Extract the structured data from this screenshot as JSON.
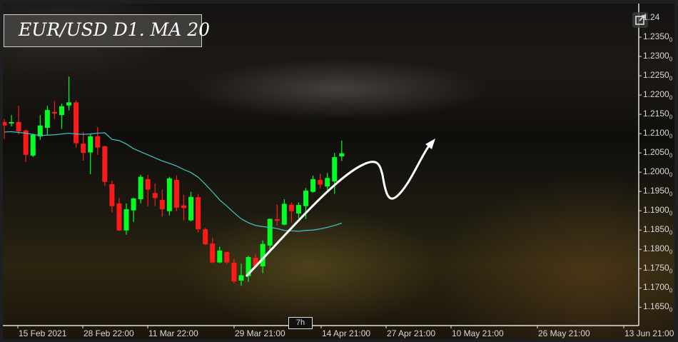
{
  "title": "EUR/USD D1. MA 20",
  "colors": {
    "bull": "#00ff22",
    "bear": "#ff1a1a",
    "ma": "#3fc7c7",
    "arrow": "#ffffff",
    "axis": "#e0e0e0"
  },
  "crosshair_label": "7h",
  "icons": {
    "expand": "external-link-icon"
  },
  "chart_data": {
    "type": "candlestick",
    "title": "EUR/USD D1. MA 20",
    "ylim": [
      1.162,
      1.243
    ],
    "y_ticks": [
      {
        "main": "1.24",
        "sub": ""
      },
      {
        "main": "1.2350",
        "sub": "0"
      },
      {
        "main": "1.2300",
        "sub": "0"
      },
      {
        "main": "1.2250",
        "sub": "0"
      },
      {
        "main": "1.2200",
        "sub": "0"
      },
      {
        "main": "1.2150",
        "sub": "0"
      },
      {
        "main": "1.2100",
        "sub": "0"
      },
      {
        "main": "1.2050",
        "sub": "0"
      },
      {
        "main": "1.2000",
        "sub": "0"
      },
      {
        "main": "1.1950",
        "sub": "0"
      },
      {
        "main": "1.1900",
        "sub": "0"
      },
      {
        "main": "1.1850",
        "sub": "0"
      },
      {
        "main": "1.1800",
        "sub": "0"
      },
      {
        "main": "1.1750",
        "sub": "0"
      },
      {
        "main": "1.1700",
        "sub": "0"
      },
      {
        "main": "1.1650",
        "sub": "0"
      }
    ],
    "y_tick_values": [
      1.24,
      1.235,
      1.23,
      1.225,
      1.22,
      1.215,
      1.21,
      1.205,
      1.2,
      1.195,
      1.19,
      1.185,
      1.18,
      1.175,
      1.17,
      1.165
    ],
    "x_ticks": [
      "15 Feb 2021",
      "28 Feb 22:00",
      "11 Mar 22:00",
      "29 Mar 21:00",
      "14 Apr 21:00",
      "27 Apr 21:00",
      "10 May 21:00",
      "26 May 21:00",
      "13 Jun 21:00"
    ],
    "candles": [
      [
        1.213,
        1.2138,
        1.2086,
        1.2121
      ],
      [
        1.2127,
        1.2148,
        1.2119,
        1.213
      ],
      [
        1.213,
        1.2172,
        1.2098,
        1.2106
      ],
      [
        1.2108,
        1.2111,
        1.2026,
        1.2045
      ],
      [
        1.2043,
        1.21,
        1.2039,
        1.2097
      ],
      [
        1.2093,
        1.2148,
        1.2084,
        1.2121
      ],
      [
        1.2115,
        1.2172,
        1.2097,
        1.2161
      ],
      [
        1.2156,
        1.2184,
        1.2138,
        1.2152
      ],
      [
        1.2148,
        1.2178,
        1.2112,
        1.2171
      ],
      [
        1.2173,
        1.2248,
        1.216,
        1.2181
      ],
      [
        1.2181,
        1.2186,
        1.2064,
        1.2075
      ],
      [
        1.2074,
        1.2104,
        1.203,
        1.205
      ],
      [
        1.2051,
        1.2098,
        1.1995,
        1.2093
      ],
      [
        1.2093,
        1.2117,
        1.2045,
        1.2064
      ],
      [
        1.2067,
        1.2069,
        1.1964,
        1.1975
      ],
      [
        1.1969,
        1.1978,
        1.1896,
        1.1912
      ],
      [
        1.1919,
        1.1934,
        1.1847,
        1.1849
      ],
      [
        1.1849,
        1.1919,
        1.1838,
        1.1904
      ],
      [
        1.1901,
        1.1934,
        1.1871,
        1.1932
      ],
      [
        1.193,
        1.1993,
        1.1919,
        1.1988
      ],
      [
        1.1982,
        1.1993,
        1.1912,
        1.1955
      ],
      [
        1.1946,
        1.1971,
        1.1912,
        1.1933
      ],
      [
        1.1928,
        1.1955,
        1.1885,
        1.1904
      ],
      [
        1.1899,
        1.1988,
        1.1888,
        1.1984
      ],
      [
        1.198,
        1.1992,
        1.1899,
        1.1908
      ],
      [
        1.1914,
        1.1941,
        1.1875,
        1.1907
      ],
      [
        1.1875,
        1.1949,
        1.1873,
        1.1936
      ],
      [
        1.1935,
        1.1944,
        1.1844,
        1.1852
      ],
      [
        1.1852,
        1.1856,
        1.1811,
        1.1813
      ],
      [
        1.1815,
        1.183,
        1.1764,
        1.1766
      ],
      [
        1.1766,
        1.1807,
        1.1764,
        1.1797
      ],
      [
        1.1793,
        1.1794,
        1.1762,
        1.1766
      ],
      [
        1.1765,
        1.1776,
        1.1712,
        1.1717
      ],
      [
        1.1719,
        1.1763,
        1.1706,
        1.1733
      ],
      [
        1.1731,
        1.1783,
        1.1716,
        1.178
      ],
      [
        1.1778,
        1.1788,
        1.1754,
        1.1756
      ],
      [
        1.1756,
        1.1823,
        1.1738,
        1.1814
      ],
      [
        1.181,
        1.188,
        1.18,
        1.1879
      ],
      [
        1.1878,
        1.1916,
        1.1862,
        1.1874
      ],
      [
        1.1864,
        1.193,
        1.1862,
        1.1918
      ],
      [
        1.1916,
        1.1922,
        1.187,
        1.1899
      ],
      [
        1.1893,
        1.1922,
        1.188,
        1.1915
      ],
      [
        1.1912,
        1.1959,
        1.1879,
        1.1952
      ],
      [
        1.1949,
        1.1991,
        1.1947,
        1.1982
      ],
      [
        1.198,
        1.1996,
        1.1958,
        1.1968
      ],
      [
        1.1963,
        1.1998,
        1.1954,
        1.1985
      ],
      [
        1.1976,
        1.205,
        1.1944,
        1.2039
      ],
      [
        1.2041,
        1.2082,
        1.2029,
        1.2049
      ]
    ],
    "candle_format": [
      "open",
      "high",
      "low",
      "close"
    ],
    "ma20": [
      1.2104,
      1.2105,
      1.2103,
      1.2101,
      1.2098,
      1.2095,
      1.2096,
      1.2097,
      1.2099,
      1.2101,
      1.2099,
      1.2098,
      1.2099,
      1.2101,
      1.2102,
      1.2085,
      1.2082,
      1.2073,
      1.2061,
      1.2053,
      1.2045,
      1.2037,
      1.2029,
      1.2023,
      1.2016,
      1.2007,
      1.1999,
      1.1987,
      1.1969,
      1.1949,
      1.1928,
      1.1912,
      1.1895,
      1.1879,
      1.1869,
      1.1862,
      1.1859,
      1.1857,
      1.1854,
      1.1849,
      1.1848,
      1.1847,
      1.1849,
      1.185,
      1.1853,
      1.1857,
      1.1862,
      1.1868
    ],
    "grid": false
  }
}
